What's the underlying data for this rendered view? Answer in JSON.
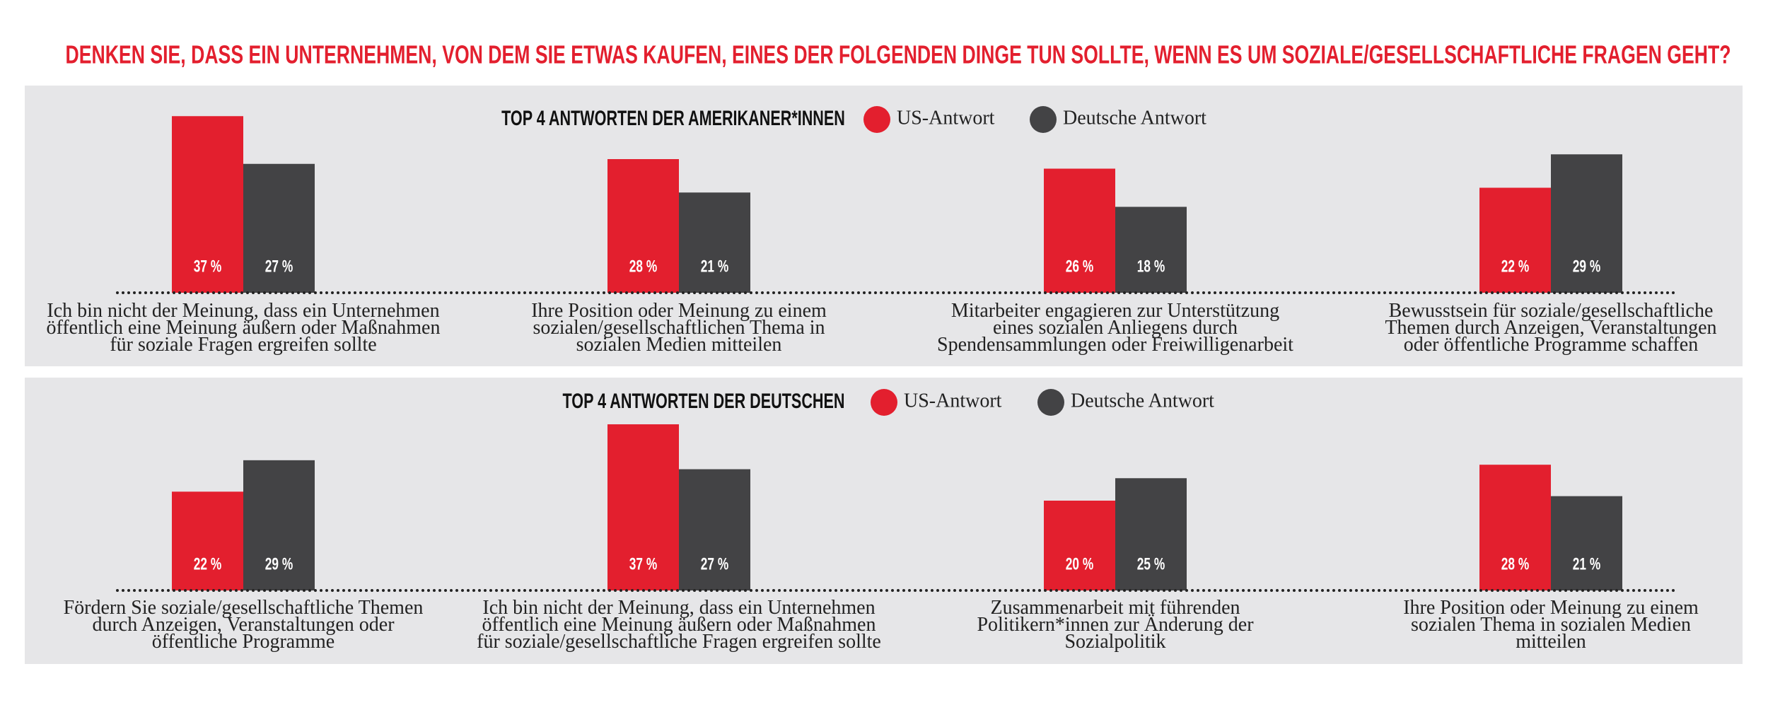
{
  "title": "DENKEN SIE, DASS EIN UNTERNEHMEN, VON DEM SIE ETWAS KAUFEN, EINES DER FOLGENDEN DINGE TUN SOLLTE, WENN ES UM SOZIALE/GESELLSCHAFTLICHE FRAGEN GEHT?",
  "chart_data": [
    {
      "type": "bar",
      "title": "TOP 4 ANTWORTEN DER AMERIKANER*INNEN",
      "categories": [
        "Ich bin nicht der Meinung, dass ein Unternehmen\nöffentlich eine Meinung äußern oder Maßnahmen\nfür soziale Fragen ergreifen sollte",
        "Ihre Position oder Meinung zu einem\nsozialen/gesellschaftlichen Thema in\nsozialen Medien mitteilen",
        "Mitarbeiter engagieren zur Unterstützung\neines sozialen Anliegens durch\nSpendensammlungen oder Freiwilligenarbeit",
        "Bewusstsein für soziale/gesellschaftliche\nThemen durch Anzeigen, Veranstaltungen\noder öffentliche Programme schaffen"
      ],
      "series": [
        {
          "name": "US-Antwort",
          "color": "#e31f2e",
          "values": [
            37,
            28,
            26,
            22
          ],
          "value_labels": [
            "37 %",
            "28 %",
            "26 %",
            "22 %"
          ]
        },
        {
          "name": "Deutsche Antwort",
          "color": "#434345",
          "values": [
            27,
            21,
            18,
            29
          ],
          "value_labels": [
            "27 %",
            "21 %",
            "18 %",
            "29 %"
          ]
        }
      ]
    },
    {
      "type": "bar",
      "title": "TOP 4 ANTWORTEN DER DEUTSCHEN",
      "categories": [
        "Fördern Sie soziale/gesellschaftliche Themen\ndurch Anzeigen, Veranstaltungen oder\nöffentliche Programme",
        "Ich bin nicht der Meinung, dass ein Unternehmen\nöffentlich eine Meinung äußern oder Maßnahmen\nfür soziale/gesellschaftliche Fragen ergreifen sollte",
        "Zusammenarbeit mit führenden\nPolitikern*innen zur Änderung der\nSozialpolitik",
        "Ihre Position oder Meinung zu einem\nsozialen Thema in sozialen Medien\nmitteilen"
      ],
      "series": [
        {
          "name": "US-Antwort",
          "color": "#e31f2e",
          "values": [
            22,
            37,
            20,
            28
          ],
          "value_labels": [
            "22 %",
            "37 %",
            "20 %",
            "28 %"
          ]
        },
        {
          "name": "Deutsche Antwort",
          "color": "#434345",
          "values": [
            29,
            27,
            25,
            21
          ],
          "value_labels": [
            "29 %",
            "27 %",
            "25 %",
            "21 %"
          ]
        }
      ]
    }
  ]
}
